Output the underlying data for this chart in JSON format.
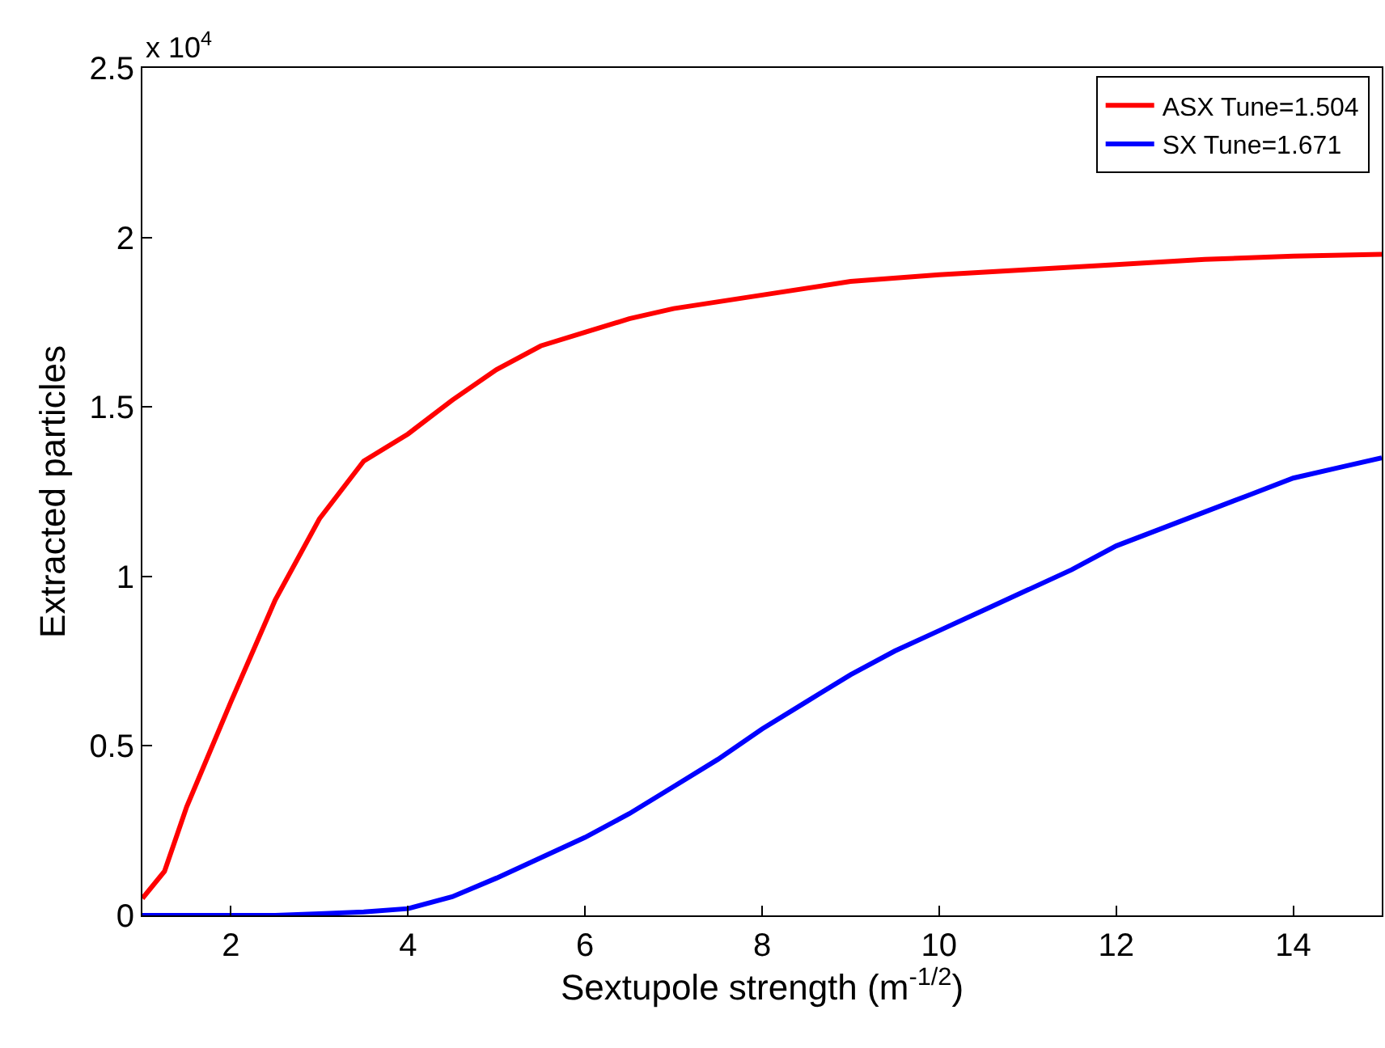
{
  "chart_data": {
    "type": "line",
    "xlabel": "Sextupole strength (m$^{-1/2}$)",
    "ylabel": "Extracted particles",
    "xlim": [
      1,
      15
    ],
    "xticks": [
      2,
      4,
      6,
      8,
      10,
      12,
      14
    ],
    "ylim": [
      0,
      2.5
    ],
    "yticks": [
      0,
      0.5,
      1,
      1.5,
      2,
      2.5
    ],
    "annotations": [
      "x 10$^{4}$"
    ],
    "legend": "top right",
    "marker": "none",
    "line_style": "solid",
    "series": [
      {
        "name": "ASX Tune=1.504",
        "color": "#ff0000",
        "x": [
          1,
          1.25,
          1.5,
          2,
          2.5,
          3,
          3.5,
          4,
          4.5,
          5,
          5.5,
          6,
          6.5,
          7,
          8,
          9,
          10,
          11,
          12,
          13,
          14,
          15
        ],
        "values": [
          0.05,
          0.13,
          0.32,
          0.63,
          0.93,
          1.17,
          1.34,
          1.42,
          1.52,
          1.61,
          1.68,
          1.72,
          1.76,
          1.79,
          1.83,
          1.87,
          1.89,
          1.905,
          1.92,
          1.935,
          1.945,
          1.95
        ]
      },
      {
        "name": "SX Tune=1.671",
        "color": "#0000ff",
        "x": [
          1,
          2,
          2.5,
          3,
          3.5,
          4,
          4.5,
          5,
          5.5,
          6,
          6.5,
          7,
          7.5,
          8,
          8.5,
          9,
          9.5,
          10,
          10.5,
          11,
          11.5,
          12,
          12.5,
          13,
          13.5,
          14,
          14.5,
          15
        ],
        "values": [
          0,
          0,
          0,
          0.005,
          0.01,
          0.02,
          0.055,
          0.11,
          0.17,
          0.23,
          0.3,
          0.38,
          0.46,
          0.55,
          0.63,
          0.71,
          0.78,
          0.84,
          0.9,
          0.96,
          1.02,
          1.09,
          1.14,
          1.19,
          1.24,
          1.29,
          1.32,
          1.35
        ]
      }
    ]
  }
}
